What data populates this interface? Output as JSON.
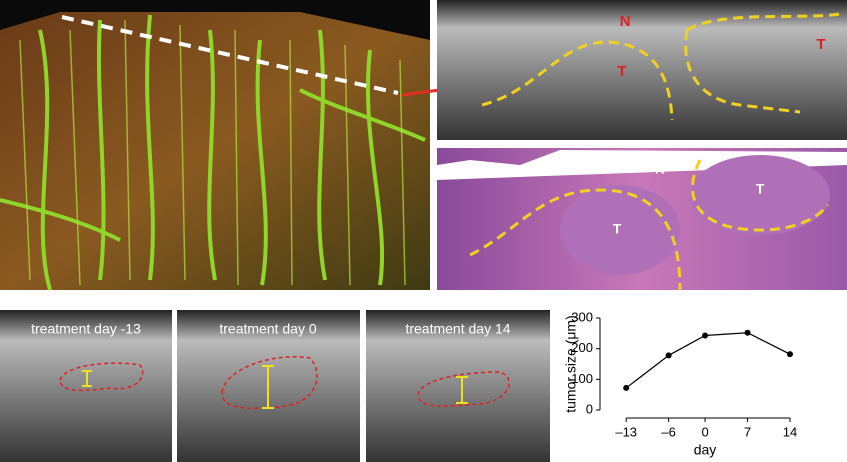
{
  "oct_labels": [
    "N",
    "T",
    "T"
  ],
  "histology_labels": [
    "N",
    "T",
    "T"
  ],
  "treatment_panels": [
    "treatment day -13",
    "treatment day 0",
    "treatment day 14"
  ],
  "chart_data": {
    "type": "line",
    "x": [
      -13,
      -6,
      0,
      7,
      14
    ],
    "values": [
      72,
      178,
      243,
      252,
      182
    ],
    "color": "#000000",
    "xlim": [
      -16,
      14
    ],
    "ylim": [
      0,
      300
    ],
    "xticks": [
      {
        "value": -13,
        "label": "–13"
      },
      {
        "value": -6,
        "label": "–6"
      },
      0,
      7,
      14
    ],
    "yticks": [
      0,
      100,
      200,
      300
    ],
    "xlabel": "day",
    "ylabel": "tumor size (μm)"
  }
}
